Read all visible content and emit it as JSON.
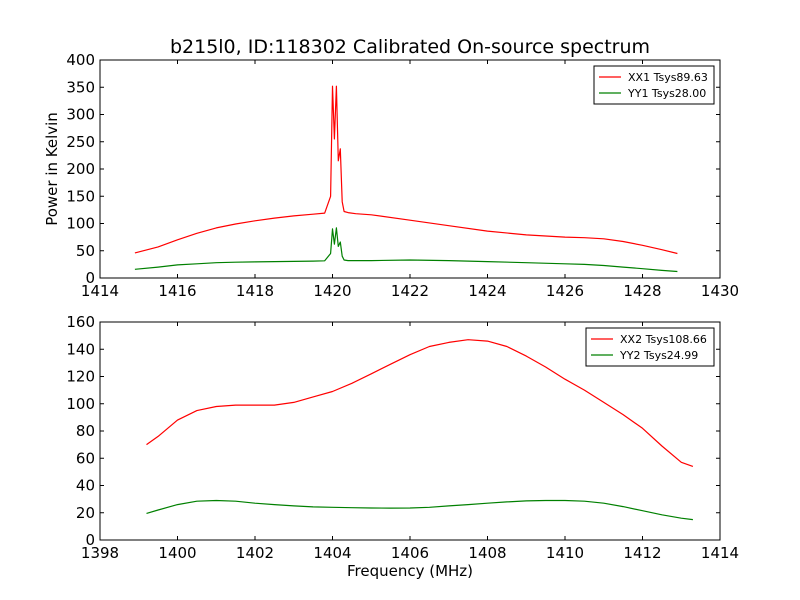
{
  "figure": {
    "title": "b215l0, ID:118302 Calibrated On-source spectrum"
  },
  "chart_data": [
    {
      "type": "line",
      "title": "b215l0, ID:118302 Calibrated On-source spectrum",
      "xlabel": "",
      "ylabel": "Power in Kelvin",
      "xlim": [
        1414,
        1430
      ],
      "ylim": [
        0,
        400
      ],
      "xticks": [
        1414,
        1416,
        1418,
        1420,
        1422,
        1424,
        1426,
        1428,
        1430
      ],
      "yticks": [
        0,
        50,
        100,
        150,
        200,
        250,
        300,
        350,
        400
      ],
      "legend": "top-right",
      "grid": false,
      "series": [
        {
          "name": "XX1 Tsys89.63",
          "color": "#ff0000",
          "x": [
            1414.9,
            1415.5,
            1416.0,
            1416.5,
            1417.0,
            1417.5,
            1418.0,
            1418.5,
            1419.0,
            1419.5,
            1419.8,
            1419.95,
            1420.0,
            1420.05,
            1420.1,
            1420.15,
            1420.2,
            1420.25,
            1420.3,
            1420.4,
            1420.6,
            1421.0,
            1422.0,
            1423.0,
            1424.0,
            1425.0,
            1426.0,
            1426.5,
            1427.0,
            1427.5,
            1428.0,
            1428.5,
            1428.9
          ],
          "y": [
            46,
            57,
            70,
            82,
            92,
            99,
            105,
            110,
            114,
            117,
            119,
            150,
            352,
            255,
            352,
            215,
            237,
            140,
            122,
            120,
            118,
            116,
            106,
            96,
            86,
            79,
            75,
            74,
            72,
            67,
            60,
            52,
            45
          ]
        },
        {
          "name": "YY1 Tsys28.00",
          "color": "#008000",
          "x": [
            1414.9,
            1415.5,
            1416.0,
            1416.5,
            1417.0,
            1417.5,
            1418.0,
            1418.5,
            1419.0,
            1419.5,
            1419.8,
            1419.95,
            1420.0,
            1420.05,
            1420.1,
            1420.15,
            1420.2,
            1420.25,
            1420.3,
            1420.4,
            1420.6,
            1421.0,
            1422.0,
            1423.0,
            1424.0,
            1425.0,
            1426.0,
            1426.5,
            1427.0,
            1427.5,
            1428.0,
            1428.5,
            1428.9
          ],
          "y": [
            16,
            20,
            24,
            26,
            28,
            29,
            29.5,
            30,
            30.5,
            31,
            31.5,
            45,
            90,
            62,
            92,
            58,
            66,
            40,
            33,
            32,
            32,
            32,
            33,
            32,
            30,
            28,
            26,
            25,
            23,
            20,
            17,
            14,
            12
          ]
        }
      ]
    },
    {
      "type": "line",
      "title": "",
      "xlabel": "Frequency (MHz)",
      "ylabel": "",
      "xlim": [
        1398,
        1414
      ],
      "ylim": [
        0,
        160
      ],
      "xticks": [
        1398,
        1400,
        1402,
        1404,
        1406,
        1408,
        1410,
        1412,
        1414
      ],
      "yticks": [
        0,
        20,
        40,
        60,
        80,
        100,
        120,
        140,
        160
      ],
      "legend": "top-right",
      "grid": false,
      "series": [
        {
          "name": "XX2 Tsys108.66",
          "color": "#ff0000",
          "x": [
            1399.2,
            1399.5,
            1400.0,
            1400.5,
            1401.0,
            1401.5,
            1402.0,
            1402.5,
            1403.0,
            1403.5,
            1404.0,
            1404.5,
            1405.0,
            1405.5,
            1406.0,
            1406.5,
            1407.0,
            1407.5,
            1408.0,
            1408.5,
            1409.0,
            1409.5,
            1410.0,
            1410.5,
            1411.0,
            1411.5,
            1412.0,
            1412.5,
            1413.0,
            1413.3
          ],
          "y": [
            70,
            76,
            88,
            95,
            98,
            99,
            99,
            99,
            101,
            105,
            109,
            115,
            122,
            129,
            136,
            142,
            145,
            147,
            146,
            142,
            135,
            127,
            118,
            110,
            101,
            92,
            82,
            69,
            57,
            54
          ]
        },
        {
          "name": "YY2 Tsys24.99",
          "color": "#008000",
          "x": [
            1399.2,
            1399.5,
            1400.0,
            1400.5,
            1401.0,
            1401.5,
            1402.0,
            1402.5,
            1403.0,
            1403.5,
            1404.0,
            1404.5,
            1405.0,
            1405.5,
            1406.0,
            1406.5,
            1407.0,
            1407.5,
            1408.0,
            1408.5,
            1409.0,
            1409.5,
            1410.0,
            1410.5,
            1411.0,
            1411.5,
            1412.0,
            1412.5,
            1413.0,
            1413.3
          ],
          "y": [
            19.5,
            22,
            26,
            28.5,
            29,
            28.5,
            27,
            26,
            25,
            24.3,
            24,
            23.7,
            23.5,
            23.4,
            23.5,
            24,
            25,
            26,
            27,
            28,
            28.7,
            29,
            29,
            28.5,
            27,
            24.5,
            21.5,
            18.5,
            16,
            15
          ]
        }
      ]
    }
  ]
}
